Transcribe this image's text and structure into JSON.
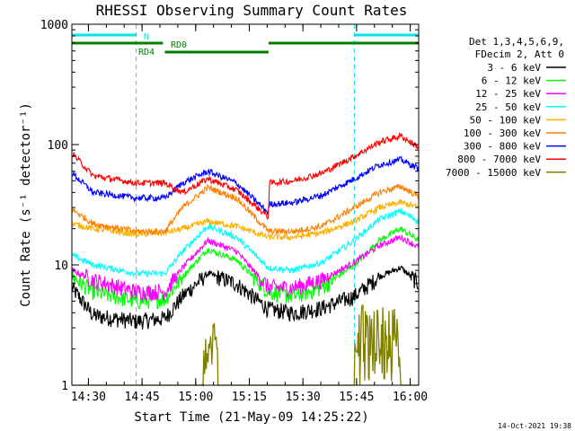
{
  "chart_data": {
    "type": "line",
    "title": "RHESSI Observing Summary Count Rates",
    "xlabel": "Start Time (21-May-09 14:25:22)",
    "ylabel": "Count Rate (s⁻¹ detector⁻¹)",
    "ylog": true,
    "ylim": [
      1,
      1000
    ],
    "xlim_minutes": [
      0,
      97
    ],
    "x_ticks": [
      "14:30",
      "14:45",
      "15:00",
      "15:15",
      "15:30",
      "15:45",
      "16:00"
    ],
    "x_tick_minutes": [
      4.63,
      19.63,
      34.63,
      49.63,
      64.63,
      79.63,
      94.63
    ],
    "y_ticks": [
      "1",
      "10",
      "100",
      "1000"
    ],
    "y_tick_values": [
      1,
      10,
      100,
      1000
    ],
    "legend_header": [
      "Det 1,3,4,5,6,9,",
      "FDecim 2, Att 0"
    ],
    "legend_position": "right",
    "timestamp": "14-Oct-2021 19:38",
    "attenuator_bars": [
      {
        "label": "N",
        "color": "#00e5e5",
        "segments": [
          [
            0,
            18
          ],
          [
            79,
            97
          ]
        ]
      },
      {
        "label": "RD0",
        "color": "#008000",
        "segments": [
          [
            0,
            25.5
          ],
          [
            55,
            97
          ]
        ]
      },
      {
        "label": "RD4",
        "color": "#008000",
        "segments": [
          [
            26,
            55
          ]
        ]
      }
    ],
    "vertical_markers_minutes": [
      18,
      79,
      97
    ],
    "series": [
      {
        "name": "3 - 6 keV",
        "color": "#000000",
        "x": [
          0,
          6,
          18,
          26,
          31,
          38,
          46,
          55,
          62,
          70,
          79,
          86,
          92,
          97
        ],
        "values": [
          6.5,
          3.8,
          3.4,
          3.6,
          5.5,
          8.5,
          7.0,
          4.3,
          4.0,
          4.4,
          5.5,
          8.0,
          9.5,
          7.0
        ]
      },
      {
        "name": "6 - 12 keV",
        "color": "#00ff00",
        "x": [
          0,
          6,
          18,
          26,
          31,
          38,
          46,
          55,
          62,
          70,
          79,
          86,
          92,
          97
        ],
        "values": [
          8.0,
          6.0,
          5.0,
          5.2,
          8.0,
          13.5,
          11.0,
          6.0,
          5.5,
          6.5,
          10.0,
          16.0,
          20.0,
          16.0
        ]
      },
      {
        "name": "12 - 25 keV",
        "color": "#ff00ff",
        "x": [
          0,
          6,
          18,
          26,
          31,
          38,
          46,
          55,
          62,
          70,
          79,
          86,
          92,
          97
        ],
        "values": [
          9.0,
          7.5,
          6.0,
          6.0,
          9.5,
          16.0,
          13.0,
          6.5,
          6.5,
          7.5,
          10.5,
          14.5,
          17.0,
          14.0
        ]
      },
      {
        "name": "25 - 50 keV",
        "color": "#00ffff",
        "x": [
          0,
          6,
          18,
          26,
          31,
          38,
          46,
          55,
          62,
          70,
          79,
          86,
          92,
          97
        ],
        "values": [
          12.0,
          10.0,
          8.5,
          8.5,
          13.0,
          21.0,
          17.0,
          9.5,
          9.0,
          10.5,
          16.0,
          24.0,
          28.0,
          23.0
        ]
      },
      {
        "name": "50 - 100 keV",
        "color": "#ffb000",
        "x": [
          0,
          6,
          18,
          26,
          31,
          38,
          46,
          55,
          62,
          70,
          79,
          86,
          92,
          97
        ],
        "values": [
          22.0,
          20.0,
          18.0,
          18.5,
          20.0,
          23.0,
          21.0,
          17.0,
          17.0,
          18.5,
          23.0,
          30.0,
          33.0,
          30.0
        ]
      },
      {
        "name": "100 - 300 keV",
        "color": "#ff8000",
        "x": [
          0,
          6,
          18,
          26,
          31,
          38,
          46,
          55,
          62,
          70,
          79,
          86,
          92,
          97
        ],
        "values": [
          29.0,
          22.0,
          19.0,
          19.0,
          30.0,
          44.0,
          36.0,
          19.0,
          19.0,
          21.0,
          30.0,
          40.0,
          45.0,
          37.0
        ]
      },
      {
        "name": "300 - 800 keV",
        "color": "#0000ff",
        "x": [
          0,
          6,
          18,
          26,
          31,
          38,
          46,
          55,
          55.2,
          62,
          70,
          79,
          86,
          92,
          97
        ],
        "values": [
          58.0,
          40.0,
          36.0,
          36.0,
          48.0,
          60.0,
          48.0,
          27.0,
          32.0,
          33.0,
          38.0,
          52.0,
          68.0,
          75.0,
          63.0
        ]
      },
      {
        "name": "800 - 7000 keV",
        "color": "#ff0000",
        "x": [
          0,
          6,
          18,
          26,
          31,
          38,
          46,
          55,
          55.2,
          62,
          70,
          79,
          86,
          92,
          97
        ],
        "values": [
          85.0,
          55.0,
          48.0,
          48.0,
          40.0,
          52.0,
          42.0,
          25.0,
          48.0,
          50.0,
          58.0,
          80.0,
          105.0,
          118.0,
          95.0
        ]
      },
      {
        "name": "7000 - 15000 keV",
        "color": "#808000",
        "x": [
          0,
          24,
          36.5,
          40,
          41,
          47,
          79,
          80,
          91,
          92,
          97
        ],
        "values": [
          1.0,
          1.0,
          1.0,
          4.3,
          1.0,
          1.0,
          1.0,
          4.3,
          4.3,
          1.0,
          1.0
        ]
      }
    ]
  }
}
